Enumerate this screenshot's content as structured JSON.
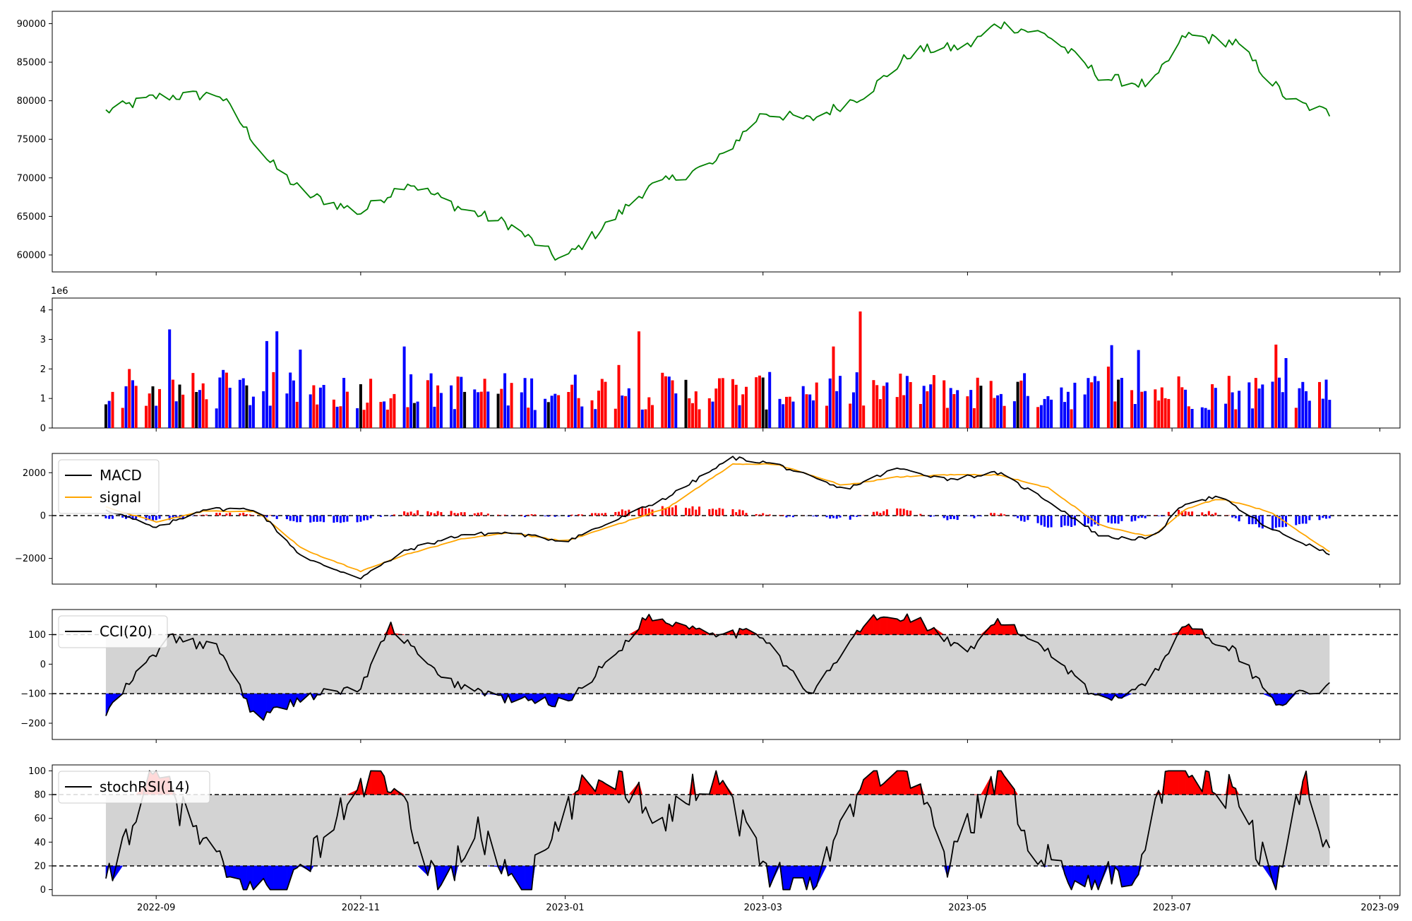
{
  "chart_data": [
    {
      "panel": "price",
      "type": "line",
      "y_ticks": [
        "60000",
        "65000",
        "70000",
        "75000",
        "80000",
        "85000",
        "90000"
      ],
      "y_tick_values": [
        60000,
        65000,
        70000,
        75000,
        80000,
        85000,
        90000
      ],
      "ylim": [
        57800,
        91600
      ],
      "line_color": "#008000",
      "x_dates": [
        "2022-08-17",
        "2022-09-01",
        "2022-09-20",
        "2022-10-05",
        "2022-10-15",
        "2022-11-01",
        "2022-11-15",
        "2022-12-01",
        "2022-12-15",
        "2022-12-31",
        "2023-01-15",
        "2023-01-25",
        "2023-02-15",
        "2023-03-01",
        "2023-03-15",
        "2023-04-01",
        "2023-04-15",
        "2023-05-01",
        "2023-05-10",
        "2023-05-25",
        "2023-06-10",
        "2023-06-25",
        "2023-07-05",
        "2023-07-20",
        "2023-08-05",
        "2023-08-17"
      ],
      "values": [
        78600,
        80500,
        80800,
        72000,
        68000,
        65500,
        69500,
        66000,
        64000,
        59200,
        64500,
        68500,
        72000,
        78500,
        77500,
        81000,
        86500,
        87000,
        90000,
        88500,
        83000,
        82000,
        88500,
        87500,
        80000,
        78400
      ]
    },
    {
      "panel": "volume",
      "type": "bar",
      "y_ticks": [
        "0",
        "1",
        "2",
        "3",
        "4"
      ],
      "y_tick_values": [
        0,
        1,
        2,
        3,
        4
      ],
      "ylim": [
        0,
        4.4
      ],
      "scale_label": "1e6",
      "colors": {
        "up": "#ff0000",
        "down": "#0000ff",
        "flat": "#000000"
      }
    },
    {
      "panel": "macd",
      "type": "line",
      "y_ticks": [
        "−2000",
        "0",
        "2000"
      ],
      "y_tick_values": [
        -2000,
        0,
        2000
      ],
      "ylim": [
        -3200,
        2900
      ],
      "series": [
        {
          "name": "MACD",
          "color": "#000000",
          "x_dates": [
            "2022-08-17",
            "2022-09-01",
            "2022-09-15",
            "2022-10-01",
            "2022-10-15",
            "2022-11-01",
            "2022-11-15",
            "2022-12-01",
            "2022-12-15",
            "2023-01-01",
            "2023-01-15",
            "2023-02-01",
            "2023-02-20",
            "2023-03-05",
            "2023-03-25",
            "2023-04-10",
            "2023-04-25",
            "2023-05-10",
            "2023-05-25",
            "2023-06-10",
            "2023-06-25",
            "2023-07-05",
            "2023-07-15",
            "2023-07-30",
            "2023-08-17"
          ],
          "values": [
            300,
            -600,
            300,
            300,
            -2000,
            -2900,
            -1600,
            -900,
            -800,
            -1200,
            -300,
            900,
            2700,
            2400,
            1200,
            2200,
            1700,
            2000,
            700,
            -1000,
            -1100,
            600,
            900,
            -600,
            -1800
          ]
        },
        {
          "name": "signal",
          "color": "#ffa500",
          "x_dates": [
            "2022-08-17",
            "2022-09-01",
            "2022-09-15",
            "2022-10-01",
            "2022-10-15",
            "2022-11-01",
            "2022-11-15",
            "2022-12-01",
            "2022-12-15",
            "2023-01-01",
            "2023-01-15",
            "2023-02-01",
            "2023-02-20",
            "2023-03-05",
            "2023-03-25",
            "2023-04-10",
            "2023-04-25",
            "2023-05-10",
            "2023-05-25",
            "2023-06-10",
            "2023-06-25",
            "2023-07-05",
            "2023-07-15",
            "2023-07-30",
            "2023-08-17"
          ],
          "values": [
            400,
            -300,
            200,
            200,
            -1600,
            -2600,
            -1800,
            -1100,
            -800,
            -1200,
            -500,
            400,
            2400,
            2400,
            1400,
            1800,
            1900,
            1900,
            1300,
            -500,
            -1000,
            300,
            800,
            200,
            -1700
          ]
        }
      ],
      "histogram_colors": {
        "positive": "#ff0000",
        "negative": "#0000ff"
      },
      "legend": "top-left"
    },
    {
      "panel": "cci",
      "type": "line",
      "y_ticks": [
        "−200",
        "−100",
        "0",
        "100"
      ],
      "y_tick_values": [
        -200,
        -100,
        0,
        100
      ],
      "ylim": [
        -255,
        185
      ],
      "series": [
        {
          "name": "CCI(20)",
          "color": "#000000",
          "x_dates": [
            "2022-08-17",
            "2022-08-25",
            "2022-09-05",
            "2022-09-20",
            "2022-10-01",
            "2022-10-15",
            "2022-11-01",
            "2022-11-10",
            "2022-11-25",
            "2022-12-15",
            "2023-01-01",
            "2023-01-15",
            "2023-01-25",
            "2023-02-15",
            "2023-03-01",
            "2023-03-15",
            "2023-04-01",
            "2023-04-15",
            "2023-05-01",
            "2023-05-10",
            "2023-05-25",
            "2023-06-10",
            "2023-06-25",
            "2023-07-05",
            "2023-07-20",
            "2023-08-01",
            "2023-08-17"
          ],
          "values": [
            -170,
            -50,
            90,
            50,
            -190,
            -110,
            -80,
            130,
            -50,
            -120,
            -130,
            20,
            160,
            110,
            100,
            -110,
            150,
            160,
            30,
            150,
            50,
            -130,
            -50,
            140,
            40,
            -130,
            -75
          ]
        }
      ],
      "thresholds": [
        100,
        -100
      ],
      "legend": "top-left"
    },
    {
      "panel": "stochrsi",
      "type": "line",
      "y_ticks": [
        "0",
        "20",
        "40",
        "60",
        "80",
        "100"
      ],
      "y_tick_values": [
        0,
        20,
        40,
        60,
        80,
        100
      ],
      "ylim": [
        -5,
        105
      ],
      "series": [
        {
          "name": "stochRSI(14)",
          "color": "#000000",
          "x_dates": [
            "2022-08-17",
            "2022-08-25",
            "2022-09-01",
            "2022-09-10",
            "2022-09-25",
            "2022-10-10",
            "2022-10-25",
            "2022-11-05",
            "2022-11-15",
            "2022-11-25",
            "2022-12-05",
            "2022-12-20",
            "2023-01-05",
            "2023-01-15",
            "2023-01-30",
            "2023-02-15",
            "2023-03-01",
            "2023-03-15",
            "2023-04-01",
            "2023-04-15",
            "2023-04-25",
            "2023-05-10",
            "2023-05-20",
            "2023-06-05",
            "2023-06-20",
            "2023-07-01",
            "2023-07-20",
            "2023-08-01",
            "2023-08-10",
            "2023-08-17"
          ],
          "values": [
            0,
            60,
            100,
            60,
            0,
            0,
            60,
            100,
            60,
            0,
            50,
            0,
            80,
            100,
            60,
            100,
            20,
            0,
            100,
            100,
            20,
            100,
            40,
            0,
            20,
            100,
            80,
            0,
            100,
            30
          ]
        }
      ],
      "thresholds": [
        80,
        20
      ],
      "legend": "top-left"
    }
  ],
  "x_axis": {
    "ticks": [
      "2022-09",
      "2022-11",
      "2023-01",
      "2023-03",
      "2023-05",
      "2023-07",
      "2023-09"
    ],
    "range": [
      "2022-08-01",
      "2023-09-07"
    ]
  }
}
